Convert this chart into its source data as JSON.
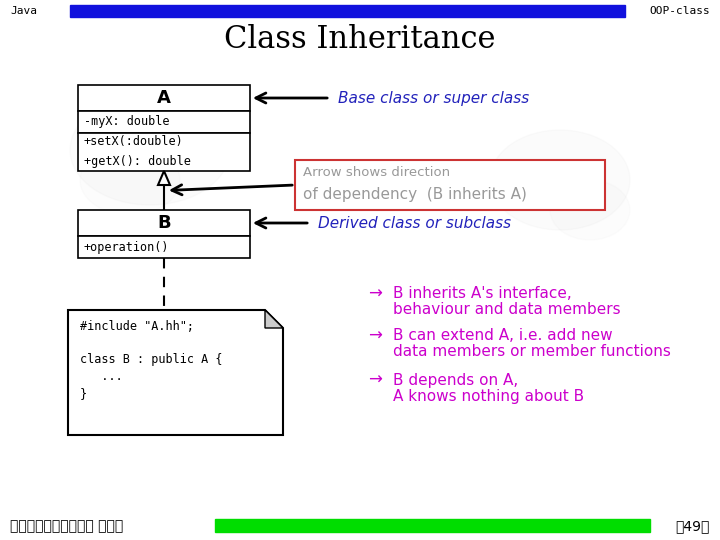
{
  "title": "Class Inheritance",
  "header_left": "Java",
  "header_right": "OOP-class",
  "footer_left": "交通大學資訊工程學系 蔡文能",
  "footer_right": "第49頁",
  "header_bar_color": "#1111dd",
  "footer_bar_color": "#00dd00",
  "class_A_title": "A",
  "class_A_attr": "-myX: double",
  "class_A_methods": "+setX(:double)\n+getX(): double",
  "class_B_title": "B",
  "class_B_methods": "+operation()",
  "base_class_label": "Base class or super class",
  "arrow_label_line1": "Arrow shows direction",
  "arrow_label_line2": "of dependency  (B inherits A)",
  "derived_class_label": "Derived class or subclass",
  "code_text_lines": [
    "#include \"A.hh\";",
    "",
    "class B : public A {",
    "   ...",
    "}"
  ],
  "bullet1a": "B inherits A's interface,",
  "bullet1b": "behaviour and data members",
  "bullet2a": "B can extend A, i.e. add new",
  "bullet2b": "data members or member functions",
  "bullet3a": "B depends on A,",
  "bullet3b": "A knows nothing about B",
  "blue_text_color": "#2222bb",
  "magenta_text_color": "#cc00cc",
  "gray_text_color": "#999999",
  "red_box_color": "#cc3333"
}
